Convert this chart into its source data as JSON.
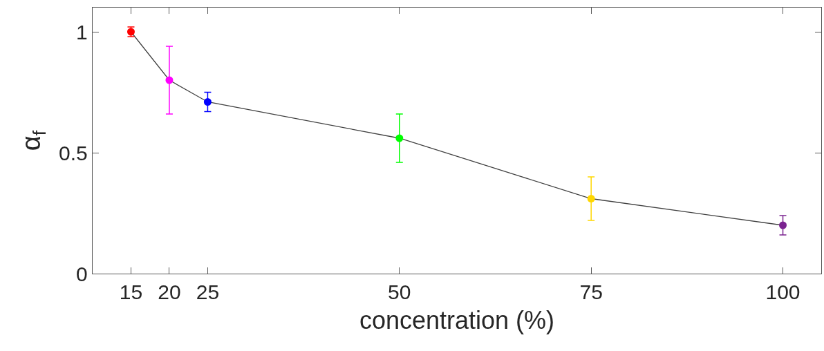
{
  "chart_data": {
    "type": "line",
    "xlabel": "concentration (%)",
    "ylabel": "α$_{f}$",
    "x": [
      15,
      20,
      25,
      50,
      75,
      100
    ],
    "series": [
      {
        "color": "#404040",
        "colors": [
          "#ff0000",
          "#ff00ff",
          "#0000ff",
          "#00ff00",
          "#ffd700",
          "#7b2390"
        ],
        "values": [
          1.0,
          0.8,
          0.71,
          0.56,
          0.31,
          0.2
        ],
        "errors": [
          0.02,
          0.14,
          0.04,
          0.1,
          0.09,
          0.04
        ]
      }
    ],
    "xlim": [
      10,
      105
    ],
    "xticks": [
      15,
      20,
      25,
      50,
      75,
      100
    ],
    "ylim": [
      0,
      1.1
    ],
    "yticks": [
      0,
      0.5,
      1
    ],
    "marker": "circle",
    "line_style": "solid"
  }
}
